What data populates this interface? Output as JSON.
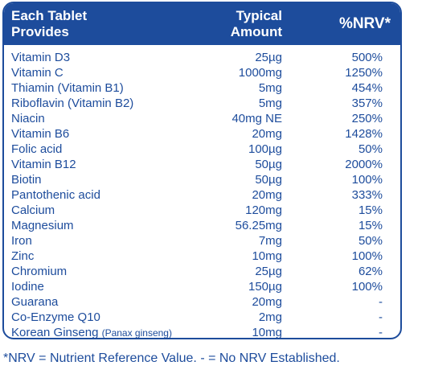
{
  "header": {
    "col1_line1": "Each Tablet",
    "col1_line2": "Provides",
    "col2_line1": "Typical",
    "col2_line2": "Amount",
    "col3": "%NRV*"
  },
  "rows": [
    {
      "name": "Vitamin D3",
      "note": "",
      "amount": "25µg",
      "nrv": "500%"
    },
    {
      "name": "Vitamin C",
      "note": "",
      "amount": "1000mg",
      "nrv": "1250%"
    },
    {
      "name": "Thiamin (Vitamin B1)",
      "note": "",
      "amount": "5mg",
      "nrv": "454%"
    },
    {
      "name": "Riboflavin (Vitamin B2)",
      "note": "",
      "amount": "5mg",
      "nrv": "357%"
    },
    {
      "name": "Niacin",
      "note": "",
      "amount": "40mg NE",
      "nrv": "250%"
    },
    {
      "name": "Vitamin B6",
      "note": "",
      "amount": "20mg",
      "nrv": "1428%"
    },
    {
      "name": "Folic acid",
      "note": "",
      "amount": "100µg",
      "nrv": "50%"
    },
    {
      "name": "Vitamin B12",
      "note": "",
      "amount": "50µg",
      "nrv": "2000%"
    },
    {
      "name": "Biotin",
      "note": "",
      "amount": "50µg",
      "nrv": "100%"
    },
    {
      "name": "Pantothenic acid",
      "note": "",
      "amount": "20mg",
      "nrv": "333%"
    },
    {
      "name": "Calcium",
      "note": "",
      "amount": "120mg",
      "nrv": "15%"
    },
    {
      "name": "Magnesium",
      "note": "",
      "amount": "56.25mg",
      "nrv": "15%"
    },
    {
      "name": "Iron",
      "note": "",
      "amount": "7mg",
      "nrv": "50%"
    },
    {
      "name": "Zinc",
      "note": "",
      "amount": "10mg",
      "nrv": "100%"
    },
    {
      "name": "Chromium",
      "note": "",
      "amount": "25µg",
      "nrv": "62%"
    },
    {
      "name": "Iodine",
      "note": "",
      "amount": "150µg",
      "nrv": "100%"
    },
    {
      "name": "Guarana",
      "note": "",
      "amount": "20mg",
      "nrv": "-"
    },
    {
      "name": "Co-Enzyme Q10",
      "note": "",
      "amount": "2mg",
      "nrv": "-"
    },
    {
      "name": "Korean Ginseng",
      "note": "(Panax ginseng)",
      "amount": "10mg",
      "nrv": "-"
    }
  ],
  "footnote": "*NRV = Nutrient Reference Value. - = No NRV Established."
}
